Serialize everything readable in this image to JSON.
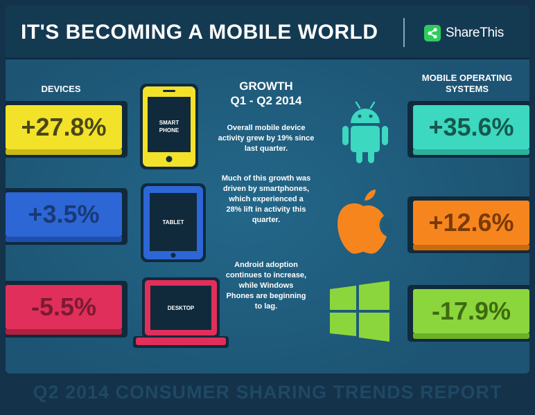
{
  "header": {
    "title": "IT'S BECOMING A MOBILE WORLD",
    "brand": "ShareThis",
    "brand_icon": "share-icon"
  },
  "devices": {
    "label": "DEVICES",
    "items": [
      {
        "name": "SMART PHONE",
        "change": "+27.8%",
        "color": "#f2e22a",
        "icon": "smartphone-icon"
      },
      {
        "name": "TABLET",
        "change": "+3.5%",
        "color": "#2d67d6",
        "icon": "tablet-icon"
      },
      {
        "name": "DESKTOP",
        "change": "-5.5%",
        "color": "#e02f5a",
        "icon": "laptop-icon"
      }
    ]
  },
  "growth": {
    "title_line1": "GROWTH",
    "title_line2": "Q1 - Q2 2014",
    "paragraphs": [
      "Overall mobile device activity grew by 19% since last quarter.",
      "Much of this growth was driven by smartphones, which experienced a 28% lift in activity this quarter.",
      "Android adoption continues to increase, while Windows Phones are beginning to lag."
    ]
  },
  "os": {
    "label": "MOBILE OPERATING SYSTEMS",
    "items": [
      {
        "name": "Android",
        "change": "+35.6%",
        "color": "#3cd8c0",
        "icon": "android-icon"
      },
      {
        "name": "Apple",
        "change": "+12.6%",
        "color": "#f7851e",
        "icon": "apple-icon"
      },
      {
        "name": "Windows",
        "change": "-17.9%",
        "color": "#8bd63c",
        "icon": "windows-icon"
      }
    ]
  },
  "footer": "Q2 2014 CONSUMER SHARING TRENDS REPORT"
}
